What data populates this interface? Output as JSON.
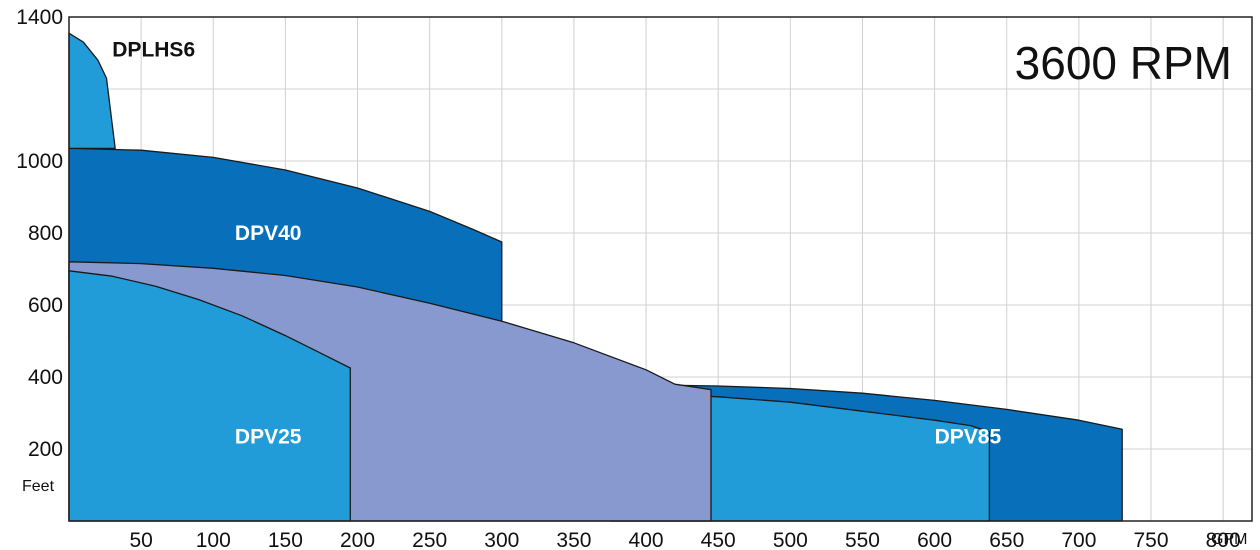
{
  "chart_data": {
    "type": "area",
    "title": "3600 RPM",
    "xlabel": "GPM",
    "ylabel": "Feet",
    "xlim": [
      0,
      820
    ],
    "ylim": [
      0,
      1400
    ],
    "x_ticks": [
      50,
      100,
      150,
      200,
      250,
      300,
      350,
      400,
      450,
      500,
      550,
      600,
      650,
      700,
      750,
      800
    ],
    "y_ticks": [
      200,
      400,
      600,
      800,
      1000,
      1400
    ],
    "grid": true,
    "colors": {
      "light_blue": "#229bd9",
      "dark_blue": "#0870bb",
      "lavender": "#8799ce",
      "edge": "#1a1a1a",
      "grid": "#d0d0d0"
    },
    "series": [
      {
        "name": "DPV40",
        "color": "dark_blue",
        "label_color": "#ffffff",
        "label_at": [
          115,
          780
        ],
        "points": [
          [
            0,
            1035
          ],
          [
            50,
            1030
          ],
          [
            100,
            1010
          ],
          [
            150,
            975
          ],
          [
            200,
            925
          ],
          [
            250,
            860
          ],
          [
            280,
            810
          ],
          [
            300,
            775
          ],
          [
            300,
            690
          ],
          [
            300,
            505
          ],
          [
            0,
            505
          ]
        ]
      },
      {
        "name": "DPLHS6",
        "color": "light_blue",
        "label_color": "#111111",
        "label_at": [
          30,
          1290
        ],
        "points": [
          [
            0,
            1355
          ],
          [
            10,
            1330
          ],
          [
            20,
            1280
          ],
          [
            26,
            1230
          ],
          [
            32,
            1035
          ],
          [
            0,
            1035
          ]
        ]
      },
      {
        "name": "DPV85 (upper)",
        "color": "dark_blue",
        "points": [
          [
            375,
            380
          ],
          [
            450,
            375
          ],
          [
            500,
            368
          ],
          [
            550,
            355
          ],
          [
            600,
            335
          ],
          [
            650,
            310
          ],
          [
            700,
            280
          ],
          [
            730,
            255
          ],
          [
            730,
            0
          ],
          [
            375,
            0
          ]
        ]
      },
      {
        "name": "DPV85",
        "color": "light_blue",
        "label_color": "#ffffff",
        "label_at": [
          600,
          215
        ],
        "points": [
          [
            375,
            360
          ],
          [
            450,
            345
          ],
          [
            500,
            330
          ],
          [
            550,
            305
          ],
          [
            600,
            280
          ],
          [
            625,
            265
          ],
          [
            638,
            248
          ],
          [
            638,
            0
          ],
          [
            375,
            0
          ]
        ]
      },
      {
        "name": "DPV40 (lower)",
        "color": "lavender",
        "points": [
          [
            0,
            720
          ],
          [
            50,
            715
          ],
          [
            100,
            702
          ],
          [
            150,
            682
          ],
          [
            200,
            650
          ],
          [
            250,
            605
          ],
          [
            300,
            555
          ],
          [
            350,
            495
          ],
          [
            400,
            420
          ],
          [
            420,
            380
          ],
          [
            445,
            365
          ],
          [
            445,
            0
          ],
          [
            0,
            0
          ]
        ]
      },
      {
        "name": "DPV25",
        "color": "light_blue",
        "label_color": "#ffffff",
        "label_at": [
          115,
          215
        ],
        "points": [
          [
            0,
            695
          ],
          [
            30,
            680
          ],
          [
            60,
            652
          ],
          [
            90,
            615
          ],
          [
            120,
            570
          ],
          [
            150,
            515
          ],
          [
            175,
            465
          ],
          [
            195,
            425
          ],
          [
            195,
            0
          ],
          [
            0,
            0
          ]
        ]
      }
    ]
  }
}
